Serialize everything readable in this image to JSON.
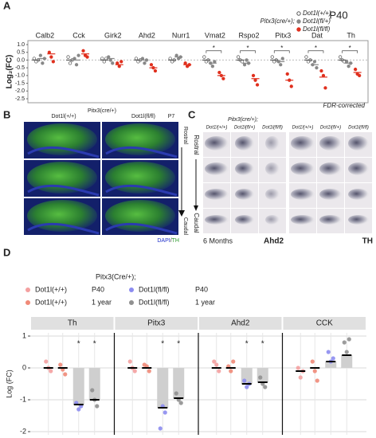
{
  "figure": {
    "letters": [
      "A",
      "B",
      "C",
      "D"
    ],
    "panel_b": {
      "col_left": "Dot1l(+/+)",
      "col_right": "Dot1l(fl/fl)",
      "genotype": "Pitx3(cre/+)",
      "age": "P7",
      "top": "Rostral",
      "bottom": "Caudal",
      "stain_parts": [
        "DAPI",
        "/",
        "TH"
      ]
    },
    "panel_c": {
      "genotype": "Pitx3(cre/+);",
      "columns": [
        "Dot1l(+/+)",
        "Dot1l(fl/+)",
        "Dot1l(fl/fl)"
      ],
      "top": "Rostral",
      "bottom": "Caudal",
      "age": "6 Months",
      "left_stain": "Ahd2",
      "right_stain": "TH"
    }
  },
  "chart_data": [
    {
      "type": "strip",
      "title": "P40",
      "ylabel": "Log₂(FC)",
      "legend_title": "Pitx3(cre/+);",
      "note": "FDR-corrected",
      "categories": [
        "Calb2",
        "Cck",
        "Girk2",
        "Ahd2",
        "Nurr1",
        "Vmat2",
        "Rspo2",
        "Pitx3",
        "Dat",
        "Th"
      ],
      "ylim": [
        -2.5,
        1.0
      ],
      "yticks": [
        {
          "value": 1,
          "label": "1.0"
        },
        0.5,
        {
          "value": 0,
          "label": "0.0"
        },
        -0.5,
        {
          "value": -1,
          "label": "-1.0"
        },
        -1.5,
        {
          "value": -2,
          "label": "-2.0"
        },
        -2.5
      ],
      "significance_label": "*",
      "significant": [
        "Vmat2",
        "Rspo2",
        "Pitx3",
        "Dat",
        "Th"
      ],
      "series": [
        {
          "name": "Dot1l(+/+)",
          "marker": "open",
          "color": "#555555",
          "values": [
            [
              0.1,
              -0.1,
              0.0
            ],
            [
              0.2,
              -0.2,
              0.0
            ],
            [
              0.1,
              -0.1,
              0.1
            ],
            [
              0.1,
              -0.1,
              0.0
            ],
            [
              0.1,
              -0.1,
              0.0
            ],
            [
              0.2,
              -0.1,
              0.0
            ],
            [
              0.2,
              0.0,
              -0.1
            ],
            [
              0.2,
              -0.1,
              0.0
            ],
            [
              0.2,
              -0.1,
              0.0
            ],
            [
              0.2,
              0.0,
              -0.1
            ]
          ],
          "means": [
            0,
            0,
            0,
            0,
            0,
            0,
            0,
            0,
            0,
            0
          ]
        },
        {
          "name": "Dot1l(fl/+)",
          "marker": "filled",
          "color": "#888888",
          "values": [
            [
              0.3,
              -0.2,
              0.1
            ],
            [
              0.1,
              -0.3,
              0.3
            ],
            [
              0.2,
              0.0,
              -0.2
            ],
            [
              0.1,
              -0.2,
              0.0
            ],
            [
              0.3,
              0.1,
              0.2
            ],
            [
              -0.2,
              -0.4,
              -0.1
            ],
            [
              -0.3,
              0.0,
              -0.2
            ],
            [
              -0.1,
              -0.3,
              0.1
            ],
            [
              -0.3,
              -0.1,
              -0.5
            ],
            [
              -0.1,
              -0.4,
              -0.2
            ]
          ],
          "means": [
            0.1,
            0,
            0.1,
            0,
            0.2,
            -0.2,
            -0.2,
            -0.1,
            -0.3,
            -0.2
          ]
        },
        {
          "name": "Dot1l(fl/fl)",
          "marker": "filled",
          "color": "#e0301e",
          "values": [
            [
              0.5,
              0.2,
              -0.1
            ],
            [
              0.6,
              0.3,
              0.2
            ],
            [
              -0.2,
              -0.4,
              -0.1
            ],
            [
              -0.3,
              -0.5,
              -0.7
            ],
            [
              -0.2,
              -0.4,
              -0.3
            ],
            [
              -0.8,
              -1.0,
              -1.2
            ],
            [
              -1.0,
              -1.3,
              -1.6
            ],
            [
              -0.9,
              -1.3,
              -1.7
            ],
            [
              -0.7,
              -1.0,
              -1.8
            ],
            [
              -0.6,
              -0.9,
              -1.0
            ]
          ],
          "means": [
            0.4,
            0.4,
            -0.3,
            -0.5,
            -0.3,
            -1.0,
            -1.2,
            -1.3,
            -1.1,
            -0.8
          ]
        }
      ]
    },
    {
      "type": "strip",
      "ylabel": "Log (FC)",
      "legend_title": "Pitx3(Cre/+);",
      "significance_label": "*",
      "categories": [
        "Th",
        "Pitx3",
        "Ahd2",
        "CCK"
      ],
      "ylim": [
        -2.1,
        1.1
      ],
      "yticks": [
        1,
        0,
        -1,
        -2
      ],
      "grid": true,
      "series": [
        {
          "name": "Dot1l(+/+)",
          "age": "P40",
          "color": "#f4a0a0",
          "values": [
            [
              0.2,
              0.0,
              -0.1
            ],
            [
              0.2,
              0.0,
              -0.1
            ],
            [
              0.2,
              0.1,
              -0.1
            ],
            [
              0.0,
              -0.3,
              -0.1
            ]
          ],
          "means": [
            0,
            0,
            0,
            -0.1
          ]
        },
        {
          "name": "Dot1l(+/+)",
          "age": "1 year",
          "color": "#f08a78",
          "values": [
            [
              0.1,
              -0.05,
              -0.2
            ],
            [
              0.1,
              0.05,
              -0.1
            ],
            [
              0.05,
              -0.1,
              0.2
            ],
            [
              0.2,
              -0.1,
              -0.4
            ]
          ],
          "means": [
            0,
            0,
            0,
            0
          ]
        },
        {
          "name": "Dot1l(fl/fl)",
          "age": "P40",
          "color": "#8c8cf0",
          "bar": true,
          "significant": [
            "Th",
            "Pitx3",
            "Ahd2"
          ],
          "values": [
            [
              -1.1,
              -1.3,
              -1.2
            ],
            [
              -1.9,
              -1.2,
              -1.4
            ],
            [
              -0.4,
              -0.6,
              -0.5
            ],
            [
              0.5,
              0.2,
              0.3
            ]
          ],
          "means": [
            -1.15,
            -1.25,
            -0.5,
            0.2
          ]
        },
        {
          "name": "Dot1l(fl/fl)",
          "age": "1 year",
          "color": "#909090",
          "bar": true,
          "significant": [
            "Th",
            "Pitx3",
            "Ahd2"
          ],
          "values": [
            [
              -0.7,
              -1.0,
              -1.2
            ],
            [
              -0.8,
              -1.0,
              -1.1
            ],
            [
              -0.3,
              -0.5,
              -0.6
            ],
            [
              0.8,
              0.5,
              0.9
            ]
          ],
          "means": [
            -1.0,
            -0.95,
            -0.45,
            0.4
          ]
        }
      ]
    }
  ]
}
